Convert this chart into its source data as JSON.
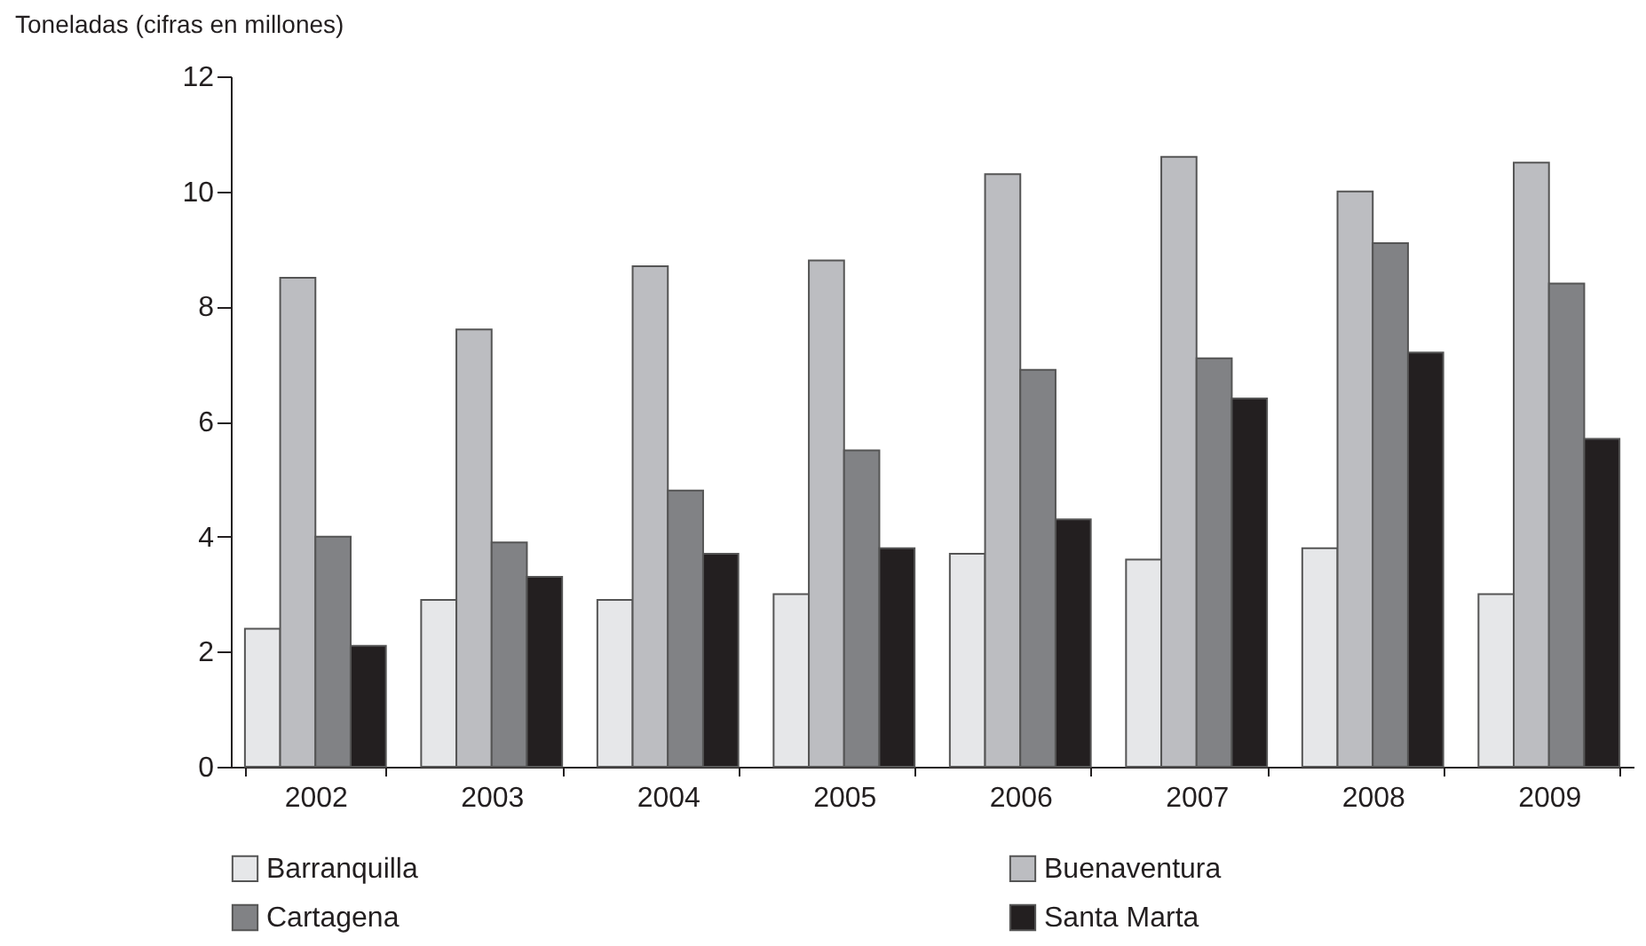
{
  "chart_data": {
    "type": "bar",
    "ylabel": "Toneladas (cifras en millones)",
    "categories": [
      "2002",
      "2003",
      "2004",
      "2005",
      "2006",
      "2007",
      "2008",
      "2009"
    ],
    "series": [
      {
        "name": "Barranquilla",
        "color": "#e6e7e9",
        "values": [
          2.4,
          2.9,
          2.9,
          3.0,
          3.7,
          3.6,
          3.8,
          3.0
        ]
      },
      {
        "name": "Buenaventura",
        "color": "#bcbdc1",
        "values": [
          8.5,
          7.6,
          8.7,
          8.8,
          10.3,
          10.6,
          10.0,
          10.5
        ]
      },
      {
        "name": "Cartagena",
        "color": "#818285",
        "values": [
          4.0,
          3.9,
          4.8,
          5.5,
          6.9,
          7.1,
          9.1,
          8.4
        ]
      },
      {
        "name": "Santa Marta",
        "color": "#231f20",
        "values": [
          2.1,
          3.3,
          3.7,
          3.8,
          4.3,
          6.4,
          7.2,
          5.7
        ]
      }
    ],
    "ylim": [
      0,
      12
    ],
    "yticks": [
      0,
      2,
      4,
      6,
      8,
      10,
      12
    ],
    "grid": false,
    "legend": "bottom"
  }
}
